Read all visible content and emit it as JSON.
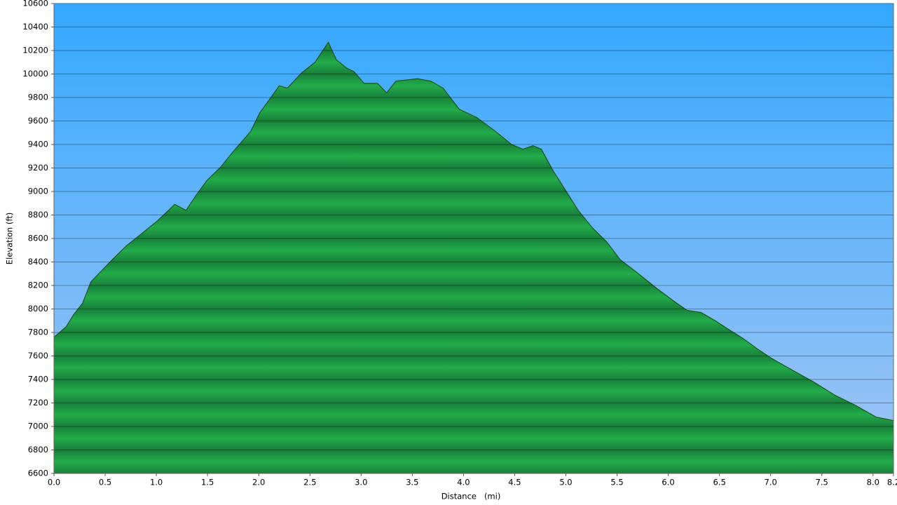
{
  "chart_data": {
    "type": "area",
    "x_label": "Distance   (mi)",
    "y_label": "Elevation (ft)",
    "color": "#1fa84a",
    "line_color": "#1d3a2a",
    "grid": true,
    "x": [
      0,
      0.12,
      0.19,
      0.28,
      0.36,
      0.47,
      0.57,
      0.71,
      0.84,
      1.01,
      1.12,
      1.18,
      1.29,
      1.39,
      1.49,
      1.63,
      1.77,
      1.92,
      2.01,
      2.11,
      2.2,
      2.28,
      2.42,
      2.55,
      2.68,
      2.76,
      2.86,
      2.93,
      3.03,
      3.16,
      3.25,
      3.34,
      3.45,
      3.55,
      3.68,
      3.8,
      3.96,
      4.13,
      4.3,
      4.47,
      4.58,
      4.68,
      4.76,
      4.88,
      4.99,
      5.12,
      5.26,
      5.4,
      5.53,
      5.71,
      5.88,
      6.05,
      6.18,
      6.32,
      6.46,
      6.6,
      6.73,
      6.87,
      7.01,
      7.21,
      7.42,
      7.62,
      7.83,
      8.03,
      8.2
    ],
    "values": [
      7760,
      7850,
      7950,
      8050,
      8230,
      8330,
      8420,
      8540,
      8630,
      8750,
      8840,
      8890,
      8840,
      8970,
      9090,
      9210,
      9360,
      9510,
      9670,
      9790,
      9900,
      9880,
      10010,
      10100,
      10270,
      10120,
      10050,
      10020,
      9920,
      9920,
      9840,
      9940,
      9950,
      9960,
      9940,
      9880,
      9700,
      9630,
      9520,
      9400,
      9360,
      9390,
      9360,
      9170,
      9020,
      8840,
      8690,
      8570,
      8420,
      8300,
      8180,
      8070,
      7990,
      7970,
      7900,
      7820,
      7750,
      7660,
      7580,
      7480,
      7380,
      7270,
      7180,
      7080,
      7050
    ],
    "xlim": [
      0,
      8.2
    ],
    "ylim": [
      6600,
      10600
    ],
    "xticks": [
      {
        "value": 0,
        "label": "0.0"
      },
      0.5,
      {
        "value": 1,
        "label": "1.0"
      },
      1.5,
      {
        "value": 2,
        "label": "2.0"
      },
      2.5,
      {
        "value": 3,
        "label": "3.0"
      },
      3.5,
      {
        "value": 4,
        "label": "4.0"
      },
      4.5,
      {
        "value": 5,
        "label": "5.0"
      },
      5.5,
      {
        "value": 6,
        "label": "6.0"
      },
      6.5,
      {
        "value": 7,
        "label": "7.0"
      },
      7.5,
      {
        "value": 8,
        "label": "8.0"
      },
      8.2
    ],
    "yticks": [
      6600,
      6800,
      7000,
      7200,
      7400,
      7600,
      7800,
      8000,
      8200,
      8400,
      8600,
      8800,
      9000,
      9200,
      9400,
      9600,
      9800,
      10000,
      10200,
      10400,
      10600
    ]
  }
}
